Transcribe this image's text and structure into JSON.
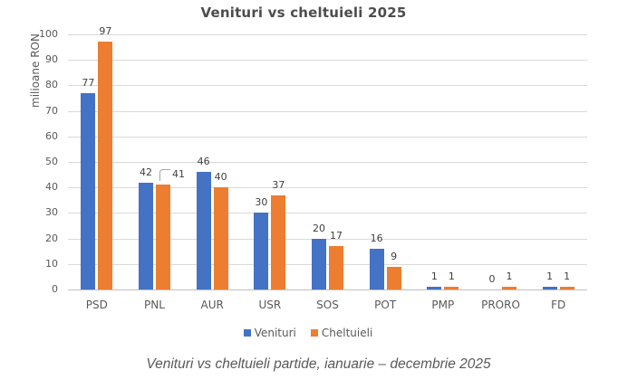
{
  "caption": "Venituri vs cheltuieli partide, ianuarie – decembrie 2025",
  "colors": {
    "venituri": "#4472C4",
    "cheltuieli": "#ED7D31",
    "grid": "#D9D9D9",
    "axis": "#BFBFBF",
    "tick_text": "#595959",
    "data_label": "#404040",
    "title_text": "#4D4D4D",
    "leader_line": "#A6A6A6"
  },
  "chart_data": {
    "type": "bar",
    "title": "Venituri vs cheltuieli 2025",
    "xlabel": "",
    "ylabel": "milioane RON",
    "ylim": [
      0,
      100
    ],
    "ytick_step": 10,
    "grid": true,
    "legend_position": "bottom",
    "categories": [
      "PSD",
      "PNL",
      "AUR",
      "USR",
      "SOS",
      "POT",
      "PMP",
      "PRORO",
      "FD"
    ],
    "series": [
      {
        "name": "Venituri",
        "color": "#4472C4",
        "values": [
          77,
          42,
          46,
          30,
          20,
          16,
          1,
          0,
          1
        ]
      },
      {
        "name": "Cheltuieli",
        "color": "#ED7D31",
        "values": [
          97,
          41,
          40,
          37,
          17,
          9,
          1,
          1,
          1
        ]
      }
    ],
    "annotations": [
      {
        "type": "leader-line",
        "series": "Cheltuieli",
        "category": "PNL",
        "label": "41"
      }
    ]
  }
}
